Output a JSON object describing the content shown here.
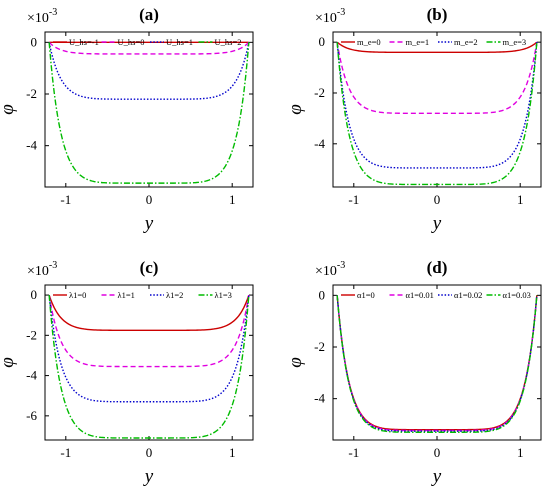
{
  "chart_data": [
    {
      "panel": "(a)",
      "type": "line",
      "title": "(a)",
      "xlabel": "y",
      "ylabel": "φ",
      "multiplier": "×10",
      "multiplier_exp": "-3",
      "xlim": [
        -1.25,
        1.25
      ],
      "ylim": [
        -5.6,
        0.4
      ],
      "xticks": [
        "-1",
        "0",
        "1"
      ],
      "yticks": [
        "0",
        "-2",
        "-4"
      ],
      "ytick_values": [
        0,
        -2,
        -4
      ],
      "legend_position": "top",
      "series": [
        {
          "name": "U_hs=-1",
          "color": "#cc0000",
          "dash": "solid",
          "depth": 0.0
        },
        {
          "name": "U_hs=0",
          "color": "#e000e0",
          "dash": "dashed",
          "depth": -0.45
        },
        {
          "name": "U_hs=1",
          "color": "#0000cc",
          "dash": "dotted",
          "depth": -2.2
        },
        {
          "name": "U_hs=2",
          "color": "#00bb00",
          "dash": "dashdot",
          "depth": -5.45
        }
      ]
    },
    {
      "panel": "(b)",
      "type": "line",
      "title": "(b)",
      "xlabel": "y",
      "ylabel": "φ",
      "multiplier": "×10",
      "multiplier_exp": "-3",
      "xlim": [
        -1.25,
        1.25
      ],
      "ylim": [
        -5.7,
        0.4
      ],
      "xticks": [
        "-1",
        "0",
        "1"
      ],
      "yticks": [
        "0",
        "-2",
        "-4"
      ],
      "ytick_values": [
        0,
        -2,
        -4
      ],
      "legend_position": "top",
      "series": [
        {
          "name": "m_e=0",
          "color": "#cc0000",
          "dash": "solid",
          "depth": -0.4
        },
        {
          "name": "m_e=1",
          "color": "#e000e0",
          "dash": "dashed",
          "depth": -2.8
        },
        {
          "name": "m_e=2",
          "color": "#0000cc",
          "dash": "dotted",
          "depth": -4.95
        },
        {
          "name": "m_e=3",
          "color": "#00bb00",
          "dash": "dashdot",
          "depth": -5.6
        }
      ]
    },
    {
      "panel": "(c)",
      "type": "line",
      "title": "(c)",
      "xlabel": "y",
      "ylabel": "φ",
      "multiplier": "×10",
      "multiplier_exp": "-3",
      "xlim": [
        -1.25,
        1.25
      ],
      "ylim": [
        -7.2,
        0.5
      ],
      "xticks": [
        "-1",
        "0",
        "1"
      ],
      "yticks": [
        "0",
        "-2",
        "-4",
        "-6"
      ],
      "ytick_values": [
        0,
        -2,
        -4,
        -6
      ],
      "legend_position": "top",
      "series": [
        {
          "name": "λ1=0",
          "color": "#cc0000",
          "dash": "solid",
          "depth": -1.75
        },
        {
          "name": "λ1=1",
          "color": "#e000e0",
          "dash": "dashed",
          "depth": -3.55
        },
        {
          "name": "λ1=2",
          "color": "#0000cc",
          "dash": "dotted",
          "depth": -5.3
        },
        {
          "name": "λ1=3",
          "color": "#00bb00",
          "dash": "dashdot",
          "depth": -7.1
        }
      ]
    },
    {
      "panel": "(d)",
      "type": "line",
      "title": "(d)",
      "xlabel": "y",
      "ylabel": "φ",
      "multiplier": "×10",
      "multiplier_exp": "-3",
      "xlim": [
        -1.25,
        1.25
      ],
      "ylim": [
        -5.6,
        0.4
      ],
      "xticks": [
        "-1",
        "0",
        "1"
      ],
      "yticks": [
        "0",
        "-2",
        "-4"
      ],
      "ytick_values": [
        0,
        -2,
        -4
      ],
      "legend_position": "top",
      "series": [
        {
          "name": "α1=0",
          "color": "#cc0000",
          "dash": "solid",
          "depth": -5.2
        },
        {
          "name": "α1=0.01",
          "color": "#e000e0",
          "dash": "dashed",
          "depth": -5.23
        },
        {
          "name": "α1=0.02",
          "color": "#0000cc",
          "dash": "dotted",
          "depth": -5.26
        },
        {
          "name": "α1=0.03",
          "color": "#00bb00",
          "dash": "dashdot",
          "depth": -5.3
        }
      ]
    }
  ]
}
